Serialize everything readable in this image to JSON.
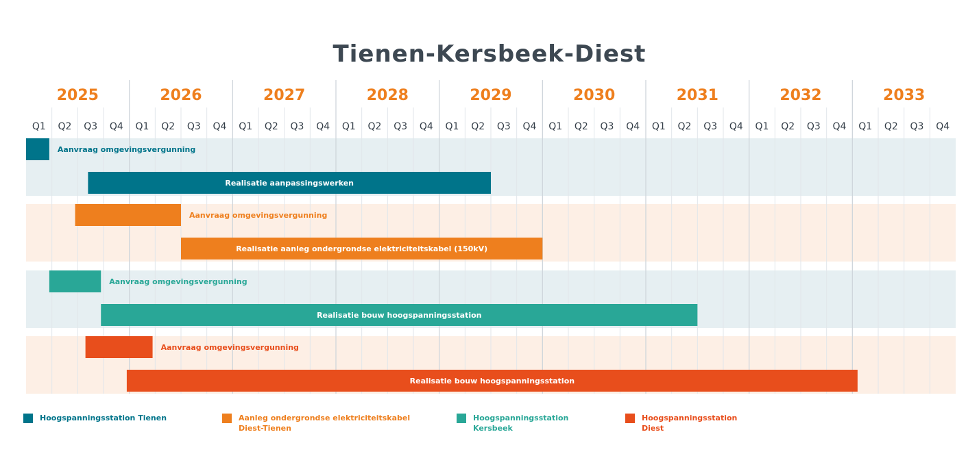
{
  "chart_data": {
    "type": "gantt",
    "title": "Tienen-Kersbeek-Diest",
    "years": [
      "2025",
      "2026",
      "2027",
      "2028",
      "2029",
      "2030",
      "2031",
      "2032",
      "2033"
    ],
    "quarters": [
      "Q1",
      "Q2",
      "Q3",
      "Q4"
    ],
    "colors": {
      "tienen": "#00748a",
      "kabel": "#ee7f1e",
      "kersbeek": "#29a797",
      "diest": "#e84e1c",
      "band_blue": "#e6eff2",
      "band_orange": "#fdefe5",
      "year_text": "#ee7f1e",
      "title_text": "#3d4852"
    },
    "groups": [
      {
        "key": "tienen",
        "color": "#00748a",
        "band": "#e6eff2",
        "legend": "Hoogspanningsstation Tienen",
        "tasks": [
          {
            "label": "Aanvraag omgevingsvergunning",
            "start": "2025 Q1",
            "end": "2025 Q1 (early)",
            "start_q": 0,
            "end_q": 0.9
          },
          {
            "label": "Realisatie aanpassingswerken",
            "start": "2025 Q3",
            "end": "2029 Q2",
            "start_q": 2.4,
            "end_q": 18
          }
        ]
      },
      {
        "key": "kabel",
        "color": "#ee7f1e",
        "band": "#fdefe5",
        "legend": "Aanleg ondergrondse elektriciteitskabel\nDiest-Tienen",
        "tasks": [
          {
            "label": "Aanvraag omgevingsvergunning",
            "start": "2025 Q2",
            "end": "2026 Q2",
            "start_q": 1.9,
            "end_q": 6
          },
          {
            "label": "Realisatie aanleg ondergrondse elektriciteitskabel (150kV)",
            "start": "2026 Q3",
            "end": "2029 Q4",
            "start_q": 6,
            "end_q": 20
          }
        ]
      },
      {
        "key": "kersbeek",
        "color": "#29a797",
        "band": "#e6eff2",
        "legend": "Hoogspanningsstation\nKersbeek",
        "tasks": [
          {
            "label": "Aanvraag omgevingsvergunning",
            "start": "2025 Q2",
            "end": "2025 Q3",
            "start_q": 0.9,
            "end_q": 2.9
          },
          {
            "label": "Realisatie bouw hoogspanningsstation",
            "start": "2025 Q4",
            "end": "2031 Q2",
            "start_q": 2.9,
            "end_q": 26
          }
        ]
      },
      {
        "key": "diest",
        "color": "#e84e1c",
        "band": "#fdefe5",
        "legend": "Hoogspanningsstation\nDiest",
        "tasks": [
          {
            "label": "Aanvraag omgevingsvergunning",
            "start": "2025 Q3",
            "end": "2026 Q1",
            "start_q": 2.3,
            "end_q": 4.9
          },
          {
            "label": "Realisatie bouw hoogspanningsstation",
            "start": "2026 Q1",
            "end": "2032 Q4",
            "start_q": 3.9,
            "end_q": 32.2
          }
        ]
      }
    ]
  }
}
